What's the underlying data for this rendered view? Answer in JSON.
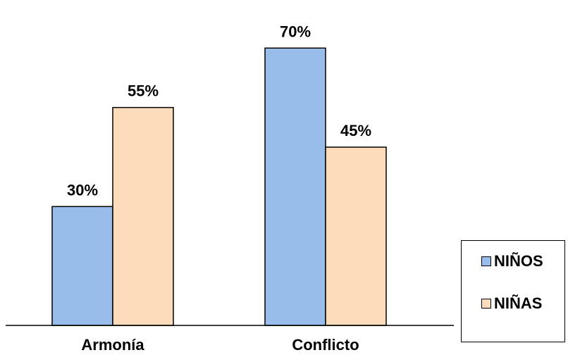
{
  "chart_data": {
    "type": "bar",
    "categories": [
      "Armonía",
      "Conflicto"
    ],
    "series": [
      {
        "name": "NIÑOS",
        "values": [
          30,
          70
        ],
        "labels": [
          "30%",
          "70%"
        ],
        "color": "#99bdea"
      },
      {
        "name": "NIÑAS",
        "values": [
          55,
          45
        ],
        "labels": [
          "55%",
          "45%"
        ],
        "color": "#fddcbc"
      }
    ],
    "ylim": [
      0,
      80
    ],
    "grid": false,
    "legend_position": "bottom-right"
  }
}
